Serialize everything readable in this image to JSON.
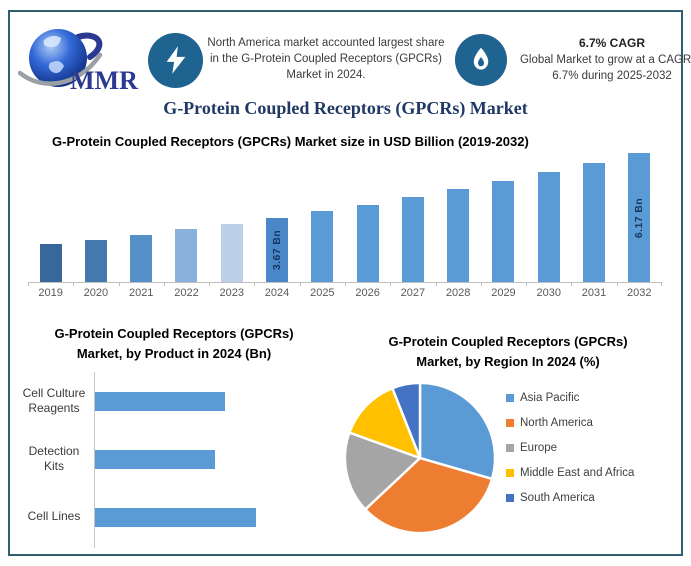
{
  "header": {
    "logo": {
      "text": "MMR"
    },
    "callout1": {
      "icon": "lightning-bolt-icon",
      "text": "North America market accounted largest share in the G-Protein Coupled Receptors (GPCRs) Market in 2024."
    },
    "callout2": {
      "icon": "flame-icon",
      "heading": "6.7% CAGR",
      "text": "Global Market to grow at a CAGR of 6.7% during 2025-2032"
    }
  },
  "page_title": "G-Protein Coupled Receptors (GPCRs) Market",
  "colors": {
    "title_navy": "#1F3864",
    "icon_circle_blue": "#1F6391",
    "frame_border": "#2E5F6E",
    "primary_bar_blue": "#5B9BD5",
    "axis_line_gray": "#BFBFBF",
    "axis_text_gray": "#595959",
    "legend_text_gray": "#404040",
    "data_label_navy": "#17375E"
  },
  "chart_data": [
    {
      "type": "bar",
      "title": "G-Protein Coupled Receptors (GPCRs) Market size in USD Billion (2019-2032)",
      "unit": "USD Billion",
      "categories": [
        "2019",
        "2020",
        "2021",
        "2022",
        "2023",
        "2024",
        "2025",
        "2026",
        "2027",
        "2028",
        "2029",
        "2030",
        "2031",
        "2032"
      ],
      "values": [
        2.65,
        2.83,
        3.02,
        3.22,
        3.44,
        3.67,
        3.92,
        4.18,
        4.46,
        4.76,
        5.08,
        5.42,
        5.78,
        6.17
      ],
      "data_labels": [
        "",
        "",
        "",
        "",
        "",
        "3.67 Bn",
        "",
        "",
        "",
        "",
        "",
        "",
        "",
        "6.17 Bn"
      ],
      "bar_colors": [
        "#38689B",
        "#4579AE",
        "#5590C9",
        "#8AB1DC",
        "#BDD0EA",
        "#4A87C8",
        "#5B9BD5",
        "#5B9BD5",
        "#5B9BD5",
        "#5B9BD5",
        "#5B9BD5",
        "#5B9BD5",
        "#5B9BD5",
        "#5B9BD5"
      ],
      "ylim": [
        0,
        6.5
      ],
      "grid": false,
      "legend_position": "none"
    },
    {
      "type": "bar",
      "orientation": "horizontal",
      "title": "G-Protein Coupled Receptors (GPCRs) Market, by Product in 2024 (Bn)",
      "title_line1": "G-Protein Coupled Receptors (GPCRs)",
      "title_line2": "Market, by Product in 2024 (Bn)",
      "categories": [
        "Cell Culture Reagents",
        "Detection Kits",
        "Cell Lines"
      ],
      "values": [
        1.16,
        1.07,
        1.44
      ],
      "bar_color": "#5B9BD5",
      "xlim": [
        0,
        1.6
      ],
      "grid": false,
      "legend_position": "none"
    },
    {
      "type": "pie",
      "title": "G-Protein Coupled Receptors (GPCRs) Market, by Region In 2024 (%)",
      "title_line1": "G-Protein Coupled Receptors (GPCRs)",
      "title_line2": "Market, by Region In 2024 (%)",
      "labels": [
        "Asia Pacific",
        "North America",
        "Europe",
        "Middle East and Africa",
        "South America"
      ],
      "values": [
        29.5,
        33.5,
        17.5,
        13.5,
        6.0
      ],
      "colors": [
        "#5B9BD5",
        "#ED7D31",
        "#A5A5A5",
        "#FFC000",
        "#4472C4"
      ],
      "legend_position": "right",
      "start_angle_deg": 0,
      "clockwise": true
    }
  ]
}
